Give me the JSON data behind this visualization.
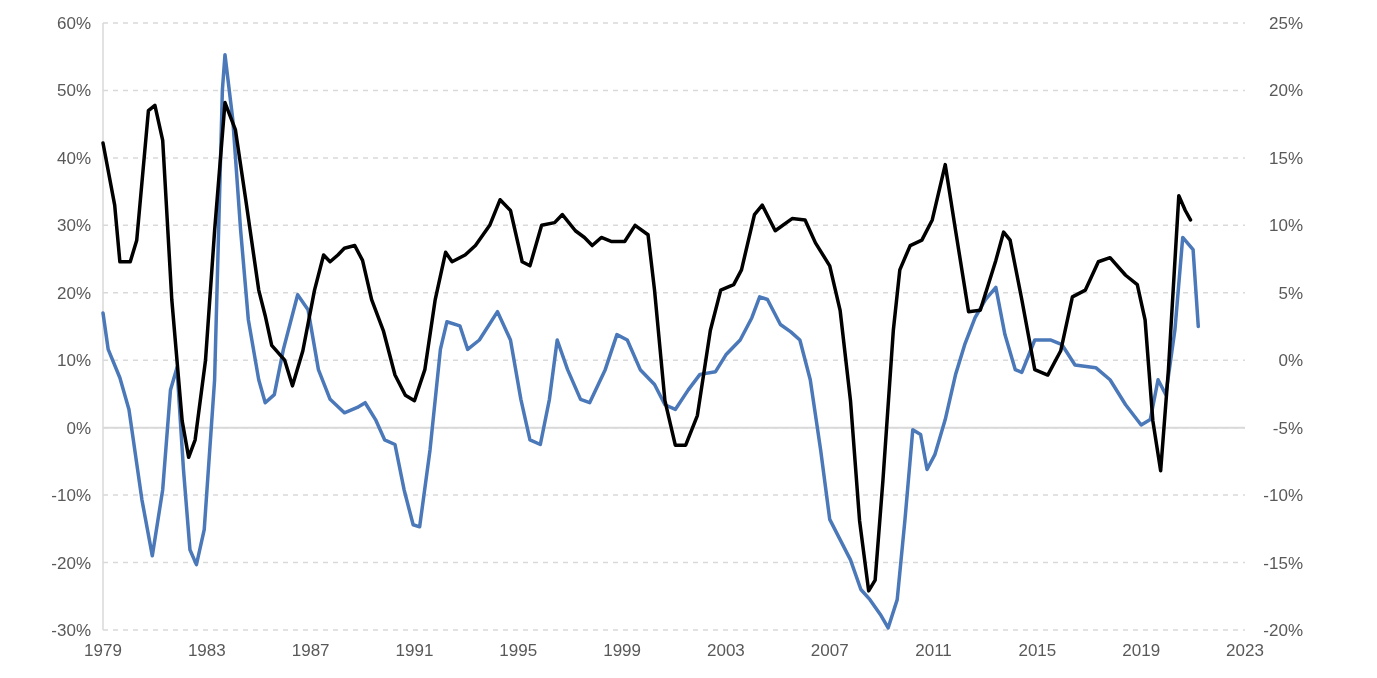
{
  "chart_data": {
    "type": "line",
    "xlim": [
      1979,
      2023
    ],
    "xticks": [
      1979,
      1983,
      1987,
      1991,
      1995,
      1999,
      2003,
      2007,
      2011,
      2015,
      2019,
      2023
    ],
    "ylim": [
      -30,
      60
    ],
    "yticks": [
      {
        "value": -30,
        "label": "-30%"
      },
      {
        "value": -20,
        "label": "-20%"
      },
      {
        "value": -10,
        "label": "-10%"
      },
      {
        "value": 0,
        "label": "0%"
      },
      {
        "value": 10,
        "label": "10%"
      },
      {
        "value": 20,
        "label": "20%"
      },
      {
        "value": 30,
        "label": "30%"
      },
      {
        "value": 40,
        "label": "40%"
      },
      {
        "value": 50,
        "label": "50%"
      },
      {
        "value": 60,
        "label": "60%"
      }
    ],
    "y2lim": [
      -20,
      25
    ],
    "y2ticks": [
      {
        "value": -20,
        "label": "-20%"
      },
      {
        "value": -15,
        "label": "-15%"
      },
      {
        "value": -10,
        "label": "-10%"
      },
      {
        "value": -5,
        "label": "-5%"
      },
      {
        "value": 0,
        "label": "0%"
      },
      {
        "value": 5,
        "label": "5%"
      },
      {
        "value": 10,
        "label": "10%"
      },
      {
        "value": 15,
        "label": "15%"
      },
      {
        "value": 20,
        "label": "20%"
      },
      {
        "value": 25,
        "label": "25%"
      }
    ],
    "grid": "y",
    "series": [
      {
        "color": "#4a78b8",
        "x": [
          1979.0,
          1979.2,
          1979.65,
          1980.0,
          1980.5,
          1980.9,
          1981.3,
          1981.6,
          1981.85,
          1982.1,
          1982.35,
          1982.6,
          1982.9,
          1983.3,
          1983.6,
          1983.7,
          1984.0,
          1984.3,
          1984.6,
          1985.0,
          1985.25,
          1985.6,
          1985.95,
          1986.5,
          1986.9,
          1987.3,
          1987.75,
          1988.3,
          1988.8,
          1989.1,
          1989.5,
          1989.85,
          1990.25,
          1990.6,
          1990.95,
          1991.2,
          1991.6,
          1992.0,
          1992.25,
          1992.75,
          1993.05,
          1993.5,
          1994.2,
          1994.7,
          1995.1,
          1995.45,
          1995.85,
          1996.2,
          1996.5,
          1996.9,
          1997.4,
          1997.75,
          1998.35,
          1998.8,
          1999.2,
          1999.7,
          2000.25,
          2000.65,
          2001.05,
          2001.55,
          2002.0,
          2002.6,
          2003.0,
          2003.55,
          2004.0,
          2004.3,
          2004.6,
          2005.1,
          2005.5,
          2005.85,
          2006.25,
          2006.65,
          2007.0,
          2007.4,
          2007.8,
          2008.2,
          2008.55,
          2008.95,
          2009.25,
          2009.6,
          2009.9,
          2010.2,
          2010.5,
          2010.75,
          2011.05,
          2011.45,
          2011.85,
          2012.2,
          2012.6,
          2013.0,
          2013.4,
          2013.75,
          2014.15,
          2014.4,
          2014.9,
          2015.5,
          2015.95,
          2016.45,
          2017.25,
          2017.8,
          2018.4,
          2019.0,
          2019.35,
          2019.65,
          2019.95,
          2020.3,
          2020.6,
          2021.0,
          2021.2
        ],
        "values": [
          17,
          11.6,
          7.4,
          2.7,
          -10.7,
          -19,
          -9.2,
          5.6,
          8.9,
          -6.2,
          -18.1,
          -20.3,
          -15.1,
          7.1,
          50.1,
          55.3,
          45.7,
          29.4,
          16,
          7.1,
          3.7,
          4.9,
          11.6,
          19.7,
          17.5,
          8.6,
          4.2,
          2.2,
          3,
          3.7,
          1.2,
          -1.8,
          -2.5,
          -9.2,
          -14.4,
          -14.7,
          -3.3,
          11.6,
          15.7,
          15.1,
          11.6,
          13,
          17.2,
          13,
          4.2,
          -1.8,
          -2.5,
          4.2,
          13,
          8.6,
          4.2,
          3.7,
          8.6,
          13.8,
          13,
          8.6,
          6.4,
          3.4,
          2.7,
          5.6,
          7.9,
          8.3,
          10.8,
          13,
          16.3,
          19.4,
          19,
          15.3,
          14.2,
          13,
          7.1,
          -3.3,
          -13.6,
          -16.6,
          -19.6,
          -24,
          -25.5,
          -27.7,
          -29.7,
          -25.5,
          -13.6,
          -0.3,
          -1,
          -6.2,
          -4,
          1.2,
          7.9,
          12.3,
          16.3,
          19,
          20.8,
          13.8,
          8.6,
          8.2,
          13,
          13,
          12.3,
          9.3,
          8.9,
          7.1,
          3.4,
          0.4,
          1.2,
          7.1,
          4.9,
          14.5,
          28.2,
          26.4,
          15
        ]
      },
      {
        "color": "#000000",
        "axis": "y2",
        "x": [
          1979.0,
          1979.45,
          1979.65,
          1980.05,
          1980.3,
          1980.75,
          1981.0,
          1981.3,
          1981.65,
          1982.05,
          1982.3,
          1982.55,
          1982.95,
          1983.3,
          1983.7,
          1984.1,
          1984.5,
          1985.0,
          1985.25,
          1985.5,
          1986.0,
          1986.3,
          1986.7,
          1987.15,
          1987.5,
          1987.75,
          1988.05,
          1988.3,
          1988.7,
          1989.0,
          1989.35,
          1989.8,
          1990.25,
          1990.65,
          1991.0,
          1991.4,
          1991.8,
          1992.2,
          1992.45,
          1992.95,
          1993.35,
          1993.9,
          1994.3,
          1994.7,
          1995.15,
          1995.45,
          1995.9,
          1996.4,
          1996.7,
          1997.2,
          1997.55,
          1997.85,
          1998.2,
          1998.6,
          1999.1,
          1999.5,
          2000.0,
          2000.25,
          2000.65,
          2001.05,
          2001.45,
          2001.9,
          2002.4,
          2002.8,
          2003.3,
          2003.6,
          2004.1,
          2004.4,
          2004.9,
          2005.55,
          2006.05,
          2006.45,
          2007.0,
          2007.4,
          2007.8,
          2008.15,
          2008.5,
          2008.75,
          2009.05,
          2009.45,
          2009.7,
          2010.1,
          2010.55,
          2010.95,
          2011.45,
          2011.85,
          2012.35,
          2012.8,
          2013.4,
          2013.7,
          2013.95,
          2014.4,
          2014.9,
          2015.4,
          2015.9,
          2016.35,
          2016.85,
          2017.35,
          2017.8,
          2018.4,
          2018.85,
          2019.15,
          2019.45,
          2019.75,
          2020.05,
          2020.45,
          2020.7,
          2020.9
        ],
        "values": [
          16.1,
          11.5,
          7.3,
          7.3,
          8.9,
          18.5,
          18.9,
          16.3,
          4.5,
          -4.5,
          -7.2,
          -5.9,
          0,
          9.6,
          19.1,
          17.1,
          11.9,
          5.2,
          3.3,
          1.1,
          0,
          -1.9,
          0.7,
          5.2,
          7.8,
          7.3,
          7.8,
          8.3,
          8.5,
          7.4,
          4.5,
          2.2,
          -1.1,
          -2.6,
          -3,
          -0.7,
          4.5,
          8,
          7.3,
          7.8,
          8.5,
          10,
          11.9,
          11.1,
          7.3,
          7,
          10,
          10.2,
          10.8,
          9.6,
          9.1,
          8.5,
          9.1,
          8.8,
          8.8,
          10,
          9.3,
          5.2,
          -3,
          -6.3,
          -6.3,
          -4.1,
          2.2,
          5.2,
          5.6,
          6.7,
          10.8,
          11.5,
          9.6,
          10.5,
          10.4,
          8.7,
          7,
          3.7,
          -3,
          -11.9,
          -17.1,
          -16.3,
          -8.9,
          2.2,
          6.7,
          8.5,
          8.9,
          10.4,
          14.5,
          9.6,
          3.6,
          3.7,
          7.4,
          9.5,
          8.9,
          4.5,
          -0.7,
          -1.1,
          0.7,
          4.7,
          5.2,
          7.3,
          7.6,
          6.3,
          5.6,
          3,
          -4.5,
          -8.2,
          -0.7,
          12.2,
          11.1,
          10.4
        ]
      }
    ]
  }
}
